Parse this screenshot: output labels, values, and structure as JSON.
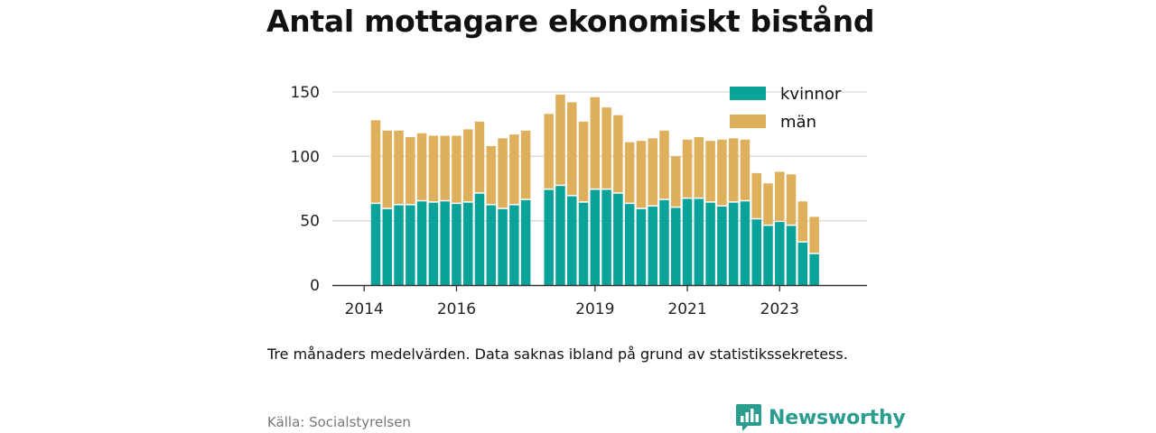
{
  "title": "Antal mottagare ekonomiskt bistånd",
  "note": "Tre månaders medelvärden. Data saknas ibland på grund av statistikssekretess.",
  "source": "Källa: Socialstyrelsen",
  "brand": {
    "name": "Newsworthy",
    "icon": "bar-chart-speech-bubble-icon",
    "color": "#2a9d8f"
  },
  "chart_data": {
    "type": "bar",
    "stacked": true,
    "grid": true,
    "legend_position": "top-right",
    "ylim": [
      0,
      150
    ],
    "yticks": [
      0,
      50,
      100,
      150
    ],
    "xticks": [
      {
        "label": "2014",
        "index": -1
      },
      {
        "label": "2016",
        "index": 7
      },
      {
        "label": "2019",
        "index": 19
      },
      {
        "label": "2021",
        "index": 27
      },
      {
        "label": "2023",
        "index": 35
      }
    ],
    "categories": [
      "2014-06",
      "2014-09",
      "2014-12",
      "2015-03",
      "2015-06",
      "2015-09",
      "2015-12",
      "2016-03",
      "2016-06",
      "2016-09",
      "2016-12",
      "2017-03",
      "2017-06",
      "2017-09",
      "2017-12",
      "2018-03",
      "2018-06",
      "2018-09",
      "2018-12",
      "2019-03",
      "2019-06",
      "2019-09",
      "2019-12",
      "2020-03",
      "2020-06",
      "2020-09",
      "2020-12",
      "2021-03",
      "2021-06",
      "2021-09",
      "2021-12",
      "2022-03",
      "2022-06",
      "2022-09",
      "2022-12",
      "2023-03",
      "2023-06",
      "2023-09",
      "2023-12",
      "2024-03",
      "2024-06"
    ],
    "series": [
      {
        "name": "kvinnor",
        "color": "#0aa39a",
        "values": [
          63,
          59,
          62,
          62,
          65,
          64,
          65,
          63,
          64,
          71,
          62,
          59,
          62,
          66,
          null,
          74,
          77,
          69,
          64,
          74,
          74,
          71,
          63,
          59,
          61,
          66,
          60,
          67,
          67,
          64,
          61,
          64,
          65,
          51,
          46,
          49,
          46,
          33,
          24,
          null,
          null
        ]
      },
      {
        "name": "män",
        "color": "#deb05c",
        "values": [
          65,
          61,
          58,
          53,
          53,
          52,
          51,
          53,
          57,
          56,
          46,
          55,
          55,
          54,
          null,
          59,
          71,
          73,
          63,
          72,
          64,
          61,
          48,
          53,
          53,
          54,
          40,
          46,
          48,
          48,
          52,
          50,
          48,
          36,
          33,
          39,
          40,
          32,
          29,
          null,
          null
        ]
      }
    ]
  }
}
